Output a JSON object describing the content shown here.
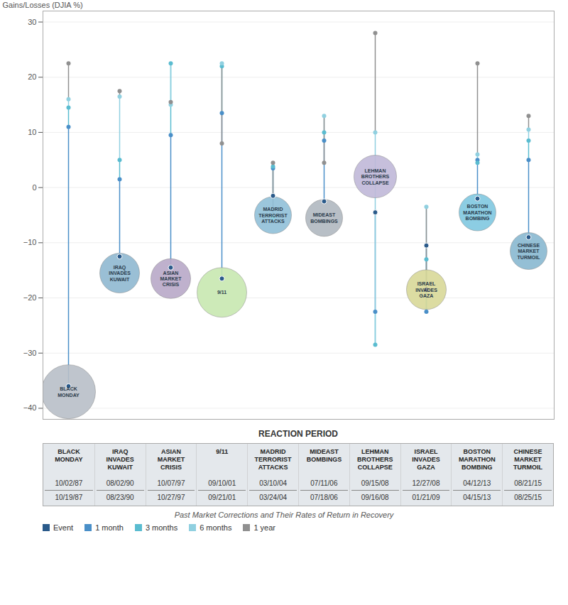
{
  "chart_data": {
    "type": "dot",
    "categories": [
      "BLACK\nMONDAY",
      "IRAQ\nINVADES\nKUWAIT",
      "ASIAN\nMARKET\nCRISIS",
      "9/11",
      "MADRID\nTERRORIST\nATTACKS",
      "MIDEAST\nBOMBINGS",
      "LEHMAN\nBROTHERS\nCOLLAPSE",
      "ISRAEL\nINVADES\nGAZA",
      "BOSTON\nMARATHON\nBOMBING",
      "CHINESE\nMARKET\nTURMOIL"
    ],
    "series": [
      {
        "name": "Event",
        "color": "#2a5a8a",
        "values": [
          -36.0,
          -12.5,
          -14.5,
          -16.5,
          -1.5,
          -2.5,
          -4.5,
          -10.5,
          -2.0,
          -9.0
        ]
      },
      {
        "name": "1 month",
        "color": "#4a8fc8",
        "values": [
          11.0,
          1.5,
          9.5,
          13.5,
          3.5,
          8.5,
          -22.5,
          -22.5,
          5.0,
          5.0
        ]
      },
      {
        "name": "3 months",
        "color": "#5abcd0",
        "values": [
          14.5,
          5.0,
          22.5,
          22.0,
          3.8,
          10.0,
          -28.5,
          -13.0,
          4.5,
          8.5
        ]
      },
      {
        "name": "6 months",
        "color": "#90d0e0",
        "values": [
          16.0,
          16.5,
          15.0,
          22.5,
          -5.5,
          13.0,
          10.0,
          -3.5,
          6.0,
          10.5
        ]
      },
      {
        "name": "1 year",
        "color": "#909090",
        "values": [
          22.5,
          17.5,
          15.5,
          8.0,
          4.5,
          4.5,
          28.0,
          -18.5,
          22.5,
          13.0
        ]
      }
    ],
    "bubble_y": [
      -37.0,
      -15.5,
      -16.5,
      -19.0,
      -5.0,
      -5.5,
      2.0,
      -18.5,
      -4.5,
      -11.5
    ],
    "bubble_sizes": [
      38,
      28,
      28,
      35,
      26,
      26,
      30,
      28,
      26,
      26
    ],
    "bubble_colors": [
      "#b8bfc8",
      "#8fb8d0",
      "#b8a8c8",
      "#c8e8b0",
      "#90c0d8",
      "#b0b8c0",
      "#c0b8d8",
      "#d8d898",
      "#80c8e0",
      "#88b8d0"
    ],
    "ylim": [
      -42,
      32
    ],
    "yticks": [
      -40,
      -30,
      -20,
      -10,
      0,
      10,
      20,
      30
    ],
    "ylabel": "Gains/Losses (DJIA %)",
    "xlabel": "REACTION PERIOD",
    "grid": true,
    "tick_labels": "y",
    "legend": "lower left",
    "subtitle": "Past Market Corrections and Their Rates of Return in Recovery",
    "table_row1": [
      "10/02/87",
      "08/02/90",
      "10/07/97",
      "09/10/01",
      "03/10/04",
      "07/11/06",
      "09/15/08",
      "12/27/08",
      "04/12/13",
      "08/21/15"
    ],
    "table_row2": [
      "10/19/87",
      "08/23/90",
      "10/27/97",
      "09/21/01",
      "03/24/04",
      "07/18/06",
      "09/16/08",
      "01/21/09",
      "04/15/13",
      "08/25/15"
    ]
  }
}
